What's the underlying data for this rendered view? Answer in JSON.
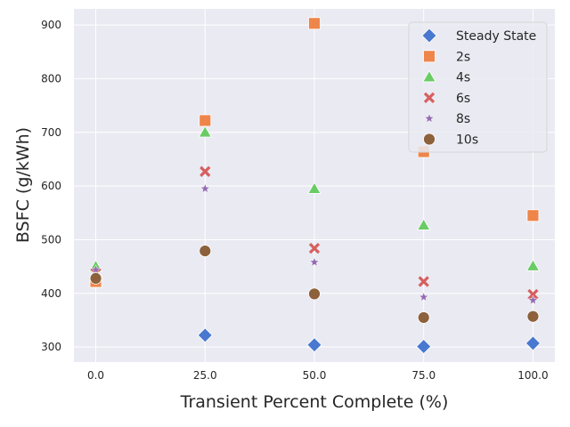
{
  "chart_data": {
    "type": "scatter",
    "xlabel": "Transient Percent Complete (%)",
    "ylabel": "BSFC (g/kWh)",
    "xlim": [
      -5,
      105
    ],
    "ylim": [
      272,
      930
    ],
    "x_ticks": [
      0,
      25,
      50,
      75,
      100
    ],
    "x_tick_labels": [
      "0.0",
      "25.0",
      "50.0",
      "75.0",
      "100.0"
    ],
    "y_ticks": [
      300,
      400,
      500,
      600,
      700,
      800,
      900
    ],
    "y_tick_labels": [
      "300",
      "400",
      "500",
      "600",
      "700",
      "800",
      "900"
    ],
    "grid": true,
    "legend_position": "top-right",
    "background": "#eaeaf2",
    "series": [
      {
        "name": "Steady State",
        "marker": "diamond",
        "color": "#4878d0",
        "x": [
          25,
          50,
          75,
          100
        ],
        "y": [
          322,
          304,
          301,
          307
        ]
      },
      {
        "name": "2s",
        "marker": "square",
        "color": "#ee854a",
        "x": [
          0,
          25,
          50,
          75,
          100
        ],
        "y": [
          422,
          722,
          903,
          664,
          545
        ]
      },
      {
        "name": "4s",
        "marker": "triangle",
        "color": "#6acc64",
        "x": [
          0,
          25,
          50,
          75,
          100
        ],
        "y": [
          450,
          700,
          595,
          527,
          451
        ]
      },
      {
        "name": "6s",
        "marker": "x",
        "color": "#d65f5f",
        "x": [
          0,
          25,
          50,
          75,
          100
        ],
        "y": [
          438,
          627,
          484,
          422,
          398
        ]
      },
      {
        "name": "8s",
        "marker": "star",
        "color": "#956cb4",
        "x": [
          0,
          25,
          50,
          75,
          100
        ],
        "y": [
          444,
          595,
          458,
          393,
          387
        ]
      },
      {
        "name": "10s",
        "marker": "circle",
        "color": "#8c613c",
        "x": [
          0,
          25,
          50,
          75,
          100
        ],
        "y": [
          428,
          479,
          399,
          355,
          357
        ]
      }
    ]
  }
}
